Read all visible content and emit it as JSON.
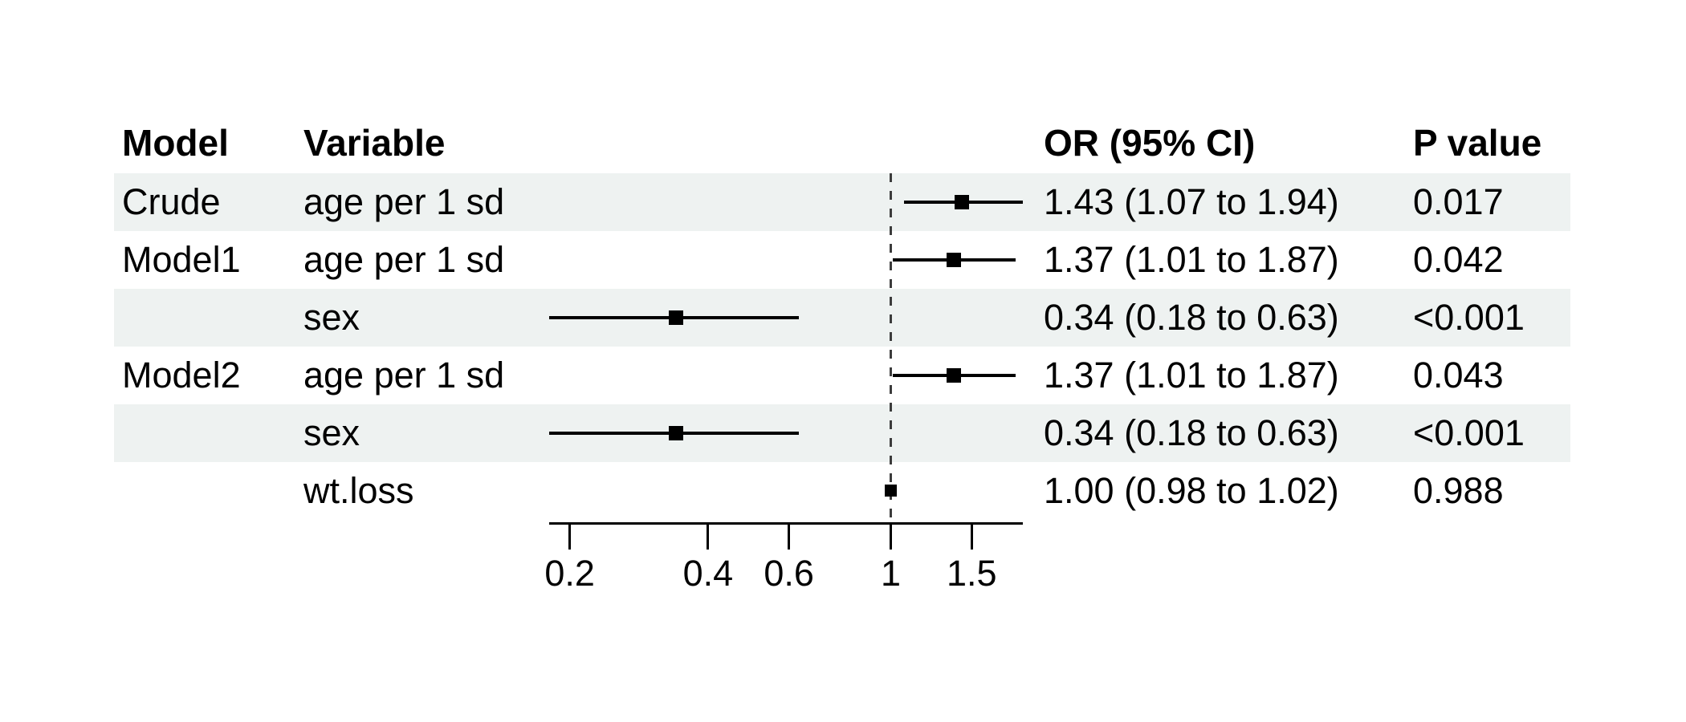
{
  "chart_data": {
    "type": "forest",
    "columns": {
      "model": "Model",
      "variable": "Variable",
      "or_ci": "OR (95% CI)",
      "p": "P value"
    },
    "rows": [
      {
        "model": "Crude",
        "variable": "age per 1 sd",
        "or": 1.43,
        "low": 1.07,
        "high": 1.94,
        "or_ci": "1.43 (1.07 to 1.94)",
        "p": "0.017",
        "shaded": true
      },
      {
        "model": "Model1",
        "variable": "age per 1 sd",
        "or": 1.37,
        "low": 1.01,
        "high": 1.87,
        "or_ci": "1.37 (1.01 to 1.87)",
        "p": "0.042",
        "shaded": false
      },
      {
        "model": "",
        "variable": "sex",
        "or": 0.34,
        "low": 0.18,
        "high": 0.63,
        "or_ci": "0.34 (0.18 to 0.63)",
        "p": "<0.001",
        "shaded": true
      },
      {
        "model": "Model2",
        "variable": "age per 1 sd",
        "or": 1.37,
        "low": 1.01,
        "high": 1.87,
        "or_ci": "1.37 (1.01 to 1.87)",
        "p": "0.043",
        "shaded": false
      },
      {
        "model": "",
        "variable": "sex",
        "or": 0.34,
        "low": 0.18,
        "high": 0.63,
        "or_ci": "0.34 (0.18 to 0.63)",
        "p": "<0.001",
        "shaded": true
      },
      {
        "model": "",
        "variable": "wt.loss",
        "or": 1.0,
        "low": 0.98,
        "high": 1.02,
        "or_ci": "1.00 (0.98 to 1.02)",
        "p": "0.988",
        "shaded": false
      }
    ],
    "x_axis": {
      "scale": "log10",
      "ticks": [
        0.2,
        0.4,
        0.6,
        1,
        1.5
      ],
      "tick_labels": [
        "0.2",
        "0.4",
        "0.6",
        "1",
        "1.5"
      ],
      "range": [
        0.18,
        1.94
      ],
      "ref_line": 1
    },
    "colors": {
      "row_shade": "#eef2f1",
      "marker": "#000000",
      "ci_line": "#000000",
      "ref_line": "#3c3c3c",
      "text": "#000000"
    }
  }
}
